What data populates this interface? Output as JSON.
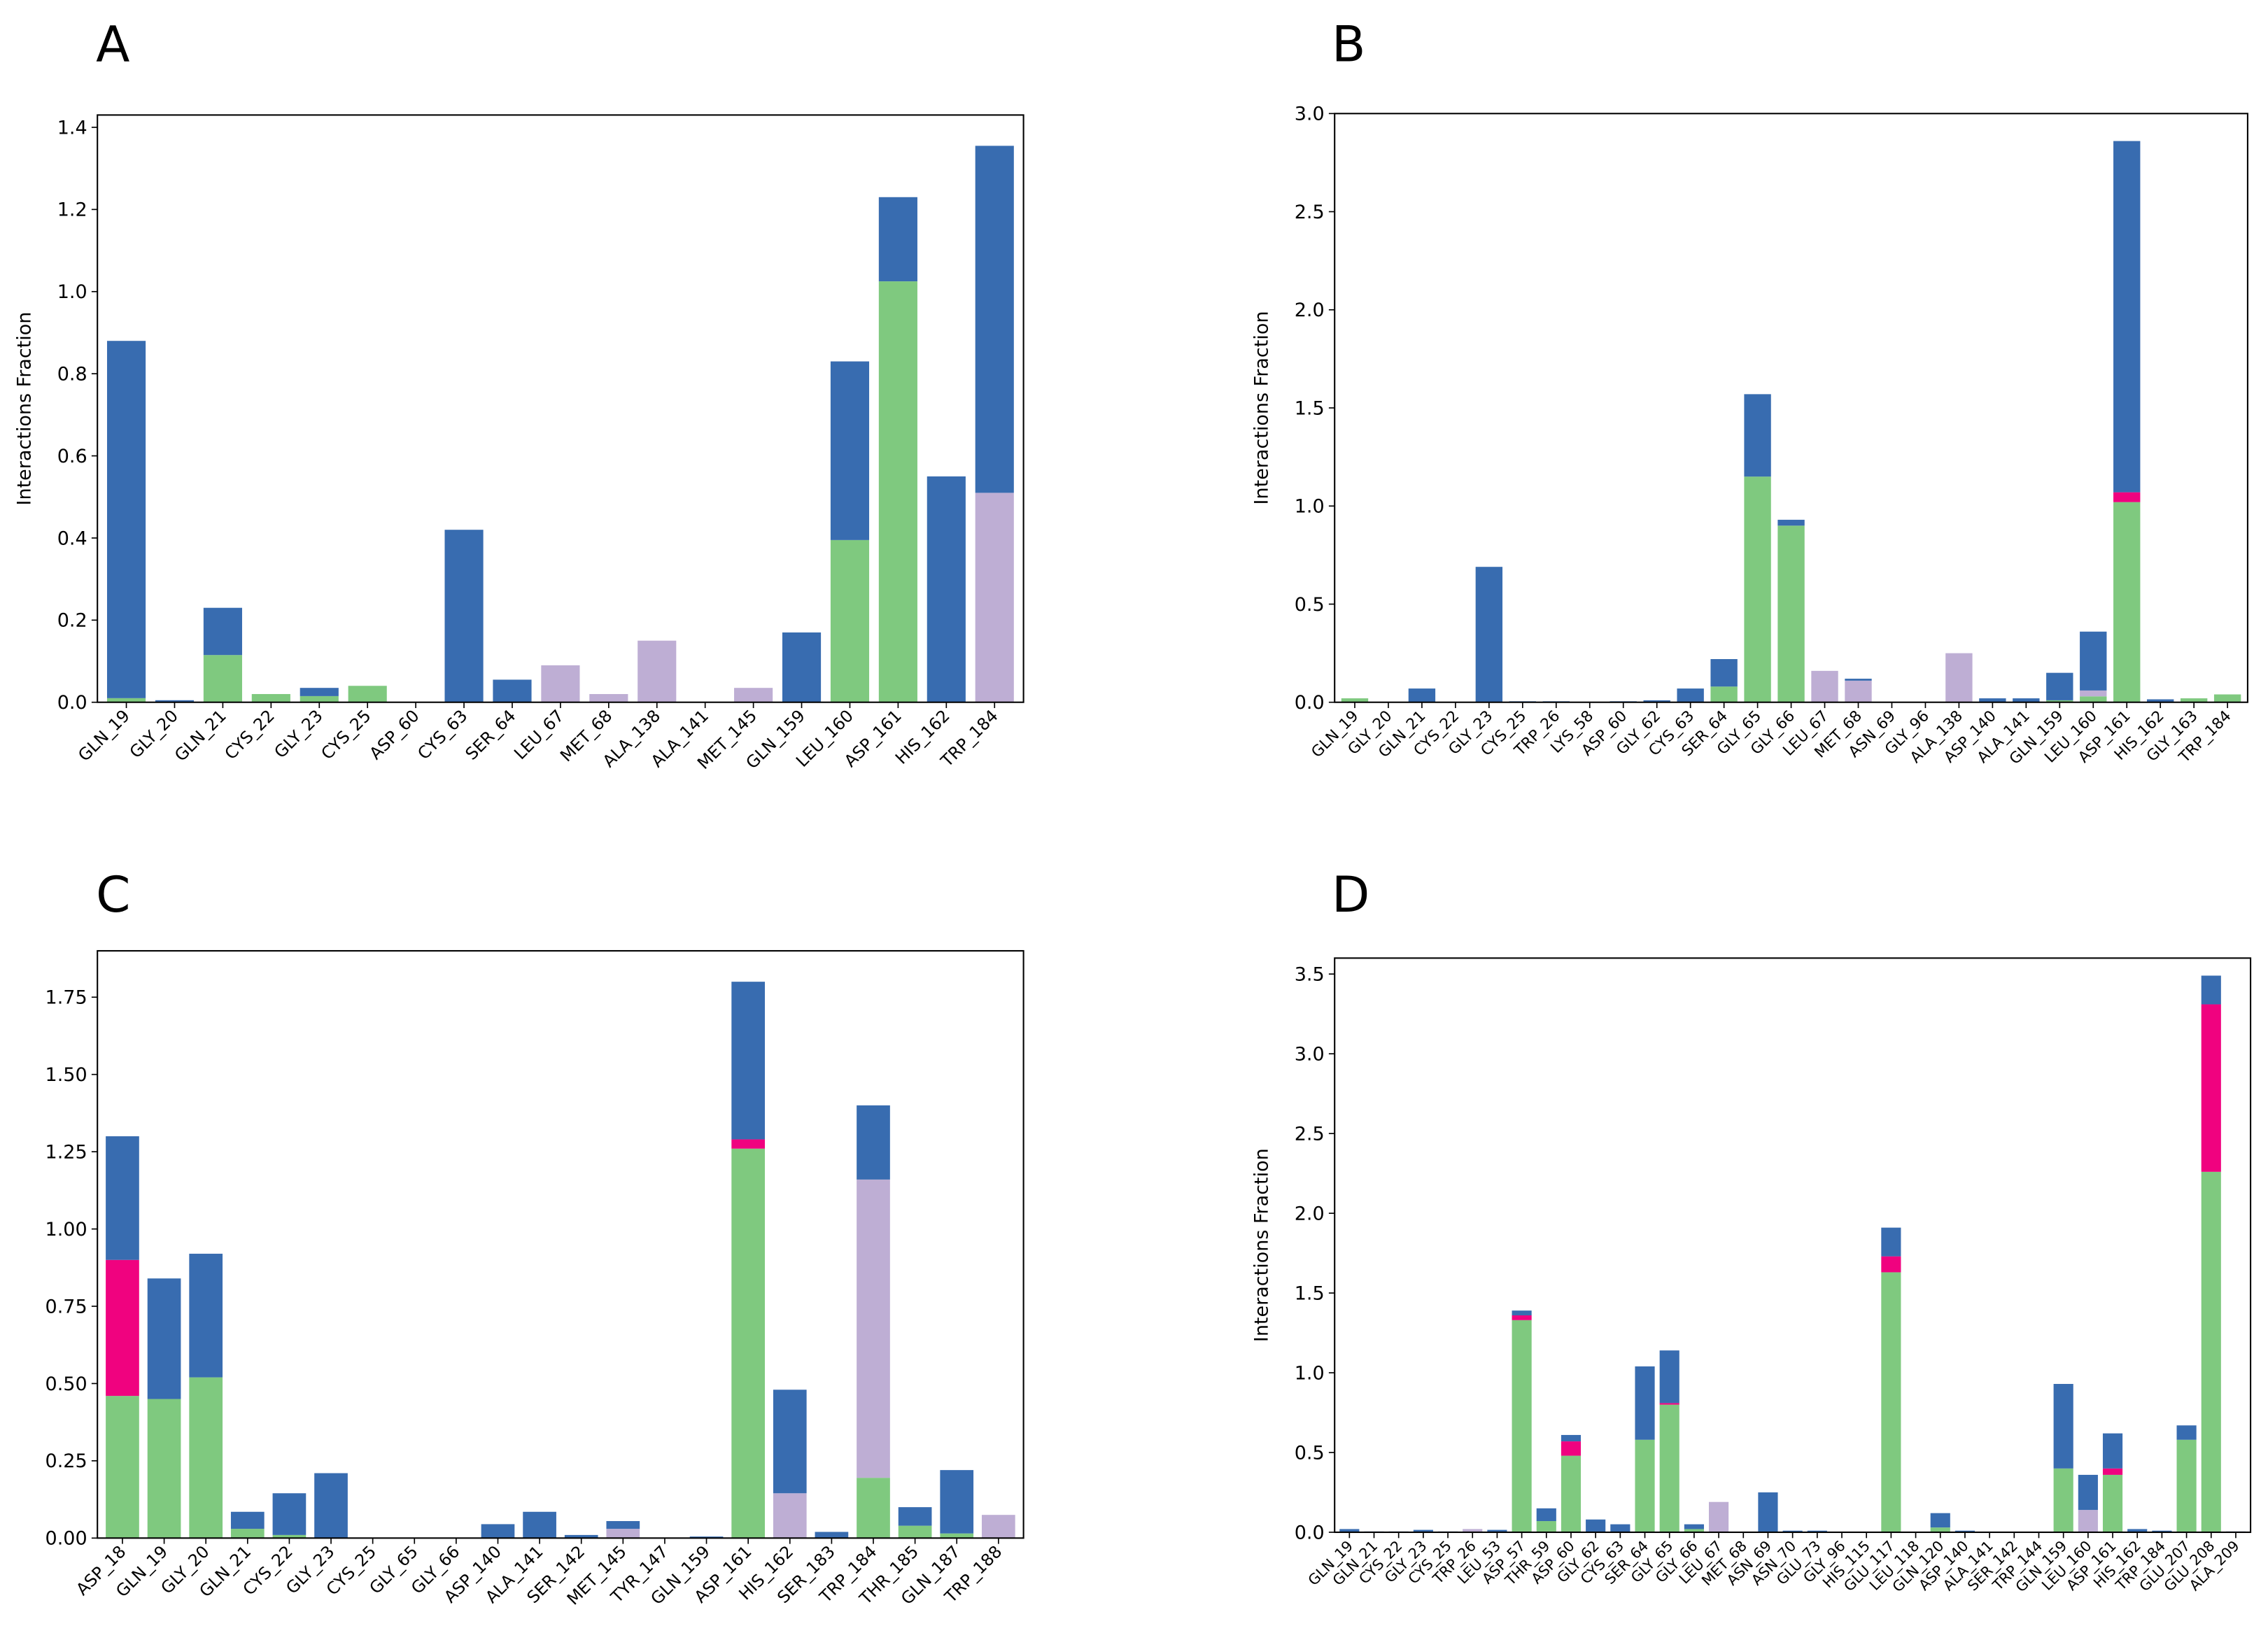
{
  "chart_data": [
    {
      "type": "bar",
      "stacked": true,
      "panel": "A",
      "ylabel": "Interactions Fraction",
      "categories": [
        "GLN_19",
        "GLY_20",
        "GLN_21",
        "CYS_22",
        "GLY_23",
        "CYS_25",
        "ASP_60",
        "CYS_63",
        "SER_64",
        "LEU_67",
        "MET_68",
        "ALA_138",
        "ALA_141",
        "MET_145",
        "GLN_159",
        "LEU_160",
        "ASP_161",
        "HIS_162",
        "TRP_184"
      ],
      "series": [
        {
          "color": "#7fc97f",
          "values": [
            0.01,
            0,
            0.115,
            0.02,
            0.015,
            0.04,
            0,
            0,
            0,
            0,
            0,
            0,
            0,
            0,
            0,
            0.395,
            1.025,
            0,
            0
          ]
        },
        {
          "color": "#beaed4",
          "values": [
            0,
            0,
            0,
            0,
            0,
            0,
            0,
            0,
            0,
            0.09,
            0.02,
            0.15,
            0,
            0.035,
            0,
            0,
            0,
            0,
            0.51
          ]
        },
        {
          "color": "#386cb0",
          "values": [
            0.87,
            0.005,
            0.115,
            0,
            0.02,
            0,
            0,
            0.42,
            0.055,
            0,
            0,
            0,
            0,
            0,
            0.17,
            0.435,
            0.205,
            0.55,
            0.845
          ]
        }
      ],
      "ylim": [
        0,
        1.43
      ],
      "yticks": [
        {
          "value": 0,
          "label": "0.0"
        },
        0.2,
        0.4,
        0.6,
        0.8,
        {
          "value": 1,
          "label": "1.0"
        },
        1.2,
        1.4
      ]
    },
    {
      "type": "bar",
      "stacked": true,
      "panel": "B",
      "ylabel": "Interactions Fraction",
      "categories": [
        "GLN_19",
        "GLY_20",
        "GLN_21",
        "CYS_22",
        "GLY_23",
        "CYS_25",
        "TRP_26",
        "LYS_58",
        "ASP_60",
        "GLY_62",
        "CYS_63",
        "SER_64",
        "GLY_65",
        "GLY_66",
        "LEU_67",
        "MET_68",
        "ASN_69",
        "GLY_96",
        "ALA_138",
        "ASP_140",
        "ALA_141",
        "GLN_159",
        "LEU_160",
        "ASP_161",
        "HIS_162",
        "GLY_163",
        "TRP_184"
      ],
      "series": [
        {
          "color": "#7fc97f",
          "values": [
            0.02,
            0,
            0,
            0,
            0,
            0,
            0,
            0,
            0,
            0,
            0,
            0.08,
            1.15,
            0.9,
            0,
            0,
            0,
            0,
            0,
            0,
            0,
            0.01,
            0.03,
            1.02,
            0,
            0.02,
            0.04
          ]
        },
        {
          "color": "#beaed4",
          "values": [
            0,
            0,
            0,
            0,
            0,
            0,
            0,
            0,
            0,
            0,
            0,
            0,
            0,
            0,
            0.16,
            0.11,
            0,
            0,
            0.25,
            0,
            0,
            0,
            0.03,
            0,
            0,
            0,
            0
          ]
        },
        {
          "color": "#f0027f",
          "values": [
            0,
            0,
            0,
            0,
            0,
            0,
            0,
            0,
            0,
            0,
            0,
            0,
            0,
            0,
            0,
            0,
            0,
            0,
            0,
            0,
            0,
            0,
            0,
            0.05,
            0,
            0,
            0
          ]
        },
        {
          "color": "#386cb0",
          "values": [
            0,
            0,
            0.07,
            0,
            0.69,
            0.005,
            0.005,
            0,
            0.005,
            0.01,
            0.07,
            0.14,
            0.42,
            0.03,
            0,
            0.01,
            0,
            0,
            0,
            0.02,
            0.02,
            0.14,
            0.3,
            1.79,
            0.015,
            0,
            0
          ]
        }
      ],
      "ylim": [
        0,
        3.0
      ],
      "yticks": [
        {
          "value": 0,
          "label": "0.0"
        },
        0.5,
        {
          "value": 1,
          "label": "1.0"
        },
        1.5,
        {
          "value": 2,
          "label": "2.0"
        },
        2.5,
        {
          "value": 3,
          "label": "3.0"
        }
      ]
    },
    {
      "type": "bar",
      "stacked": true,
      "panel": "C",
      "categories": [
        "ASP_18",
        "GLN_19",
        "GLY_20",
        "GLN_21",
        "CYS_22",
        "GLY_23",
        "CYS_25",
        "GLY_65",
        "GLY_66",
        "ASP_140",
        "ALA_141",
        "SER_142",
        "MET_145",
        "TYR_147",
        "GLN_159",
        "ASP_161",
        "HIS_162",
        "SER_183",
        "TRP_184",
        "THR_185",
        "GLN_187",
        "TRP_188"
      ],
      "series": [
        {
          "color": "#7fc97f",
          "values": [
            0.46,
            0.45,
            0.52,
            0.03,
            0.01,
            0,
            0,
            0,
            0,
            0,
            0,
            0,
            0,
            0,
            0,
            1.26,
            0,
            0,
            0.195,
            0.04,
            0.015,
            0
          ]
        },
        {
          "color": "#beaed4",
          "values": [
            0,
            0,
            0,
            0,
            0,
            0,
            0,
            0,
            0,
            0,
            0,
            0,
            0.03,
            0,
            0,
            0,
            0.145,
            0,
            0.965,
            0,
            0,
            0.075
          ]
        },
        {
          "color": "#f0027f",
          "values": [
            0.44,
            0,
            0,
            0,
            0,
            0,
            0,
            0,
            0,
            0,
            0,
            0,
            0,
            0,
            0,
            0.03,
            0,
            0,
            0,
            0,
            0,
            0
          ]
        },
        {
          "color": "#386cb0",
          "values": [
            0.4,
            0.39,
            0.4,
            0.055,
            0.135,
            0.21,
            0,
            0,
            0,
            0.045,
            0.085,
            0.01,
            0.025,
            0,
            0.005,
            0.51,
            0.335,
            0.02,
            0.24,
            0.06,
            0.205,
            0
          ]
        }
      ],
      "ylim": [
        0,
        1.9
      ],
      "yticks": [
        {
          "value": 0,
          "label": "0.00"
        },
        0.25,
        {
          "value": 0.5,
          "label": "0.50"
        },
        0.75,
        {
          "value": 1,
          "label": "1.00"
        },
        1.25,
        {
          "value": 1.5,
          "label": "1.50"
        },
        1.75
      ]
    },
    {
      "type": "bar",
      "stacked": true,
      "panel": "D",
      "ylabel": "Interactions Fraction",
      "categories": [
        "GLN_19",
        "GLN_21",
        "CYS_22",
        "GLY_23",
        "CYS_25",
        "TRP_26",
        "LEU_53",
        "ASP_57",
        "THR_59",
        "ASP_60",
        "GLY_62",
        "CYS_63",
        "SER_64",
        "GLY_65",
        "GLY_66",
        "LEU_67",
        "MET_68",
        "ASN_69",
        "ASN_70",
        "GLU_73",
        "GLY_96",
        "HIS_115",
        "GLU_117",
        "LEU_118",
        "GLN_120",
        "ASP_140",
        "ALA_141",
        "SER_142",
        "TRP_144",
        "GLN_159",
        "LEU_160",
        "ASP_161",
        "HIS_162",
        "TRP_184",
        "GLU_207",
        "GLU_208",
        "ALA_209"
      ],
      "series": [
        {
          "color": "#7fc97f",
          "values": [
            0,
            0,
            0,
            0,
            0,
            0,
            0,
            1.33,
            0.07,
            0.48,
            0,
            0,
            0.58,
            0.8,
            0.02,
            0,
            0,
            0,
            0,
            0,
            0,
            0,
            1.63,
            0,
            0.03,
            0,
            0,
            0,
            0,
            0.4,
            0,
            0.36,
            0,
            0,
            0.58,
            2.26,
            0
          ]
        },
        {
          "color": "#beaed4",
          "values": [
            0,
            0,
            0,
            0,
            0,
            0.02,
            0,
            0,
            0,
            0,
            0,
            0,
            0,
            0,
            0,
            0.19,
            0,
            0,
            0,
            0,
            0,
            0,
            0,
            0,
            0,
            0,
            0,
            0,
            0,
            0,
            0.14,
            0,
            0,
            0,
            0,
            0,
            0
          ]
        },
        {
          "color": "#f0027f",
          "values": [
            0,
            0,
            0,
            0,
            0,
            0,
            0,
            0.03,
            0,
            0.09,
            0,
            0,
            0,
            0.01,
            0,
            0,
            0,
            0,
            0,
            0,
            0,
            0,
            0.1,
            0,
            0,
            0,
            0,
            0,
            0,
            0,
            0,
            0.04,
            0,
            0,
            0,
            1.05,
            0
          ]
        },
        {
          "color": "#386cb0",
          "values": [
            0.02,
            0.005,
            0.005,
            0.015,
            0.005,
            0,
            0.015,
            0.03,
            0.08,
            0.04,
            0.08,
            0.05,
            0.46,
            0.33,
            0.03,
            0,
            0,
            0.25,
            0.01,
            0.01,
            0,
            0,
            0.18,
            0,
            0.09,
            0.01,
            0,
            0,
            0,
            0.53,
            0.22,
            0.22,
            0.02,
            0.01,
            0.09,
            0.18,
            0.005
          ]
        }
      ],
      "ylim": [
        0,
        3.6
      ],
      "yticks": [
        {
          "value": 0,
          "label": "0.0"
        },
        0.5,
        {
          "value": 1,
          "label": "1.0"
        },
        1.5,
        {
          "value": 2,
          "label": "2.0"
        },
        2.5,
        {
          "value": 3,
          "label": "3.0"
        },
        3.5
      ]
    }
  ]
}
